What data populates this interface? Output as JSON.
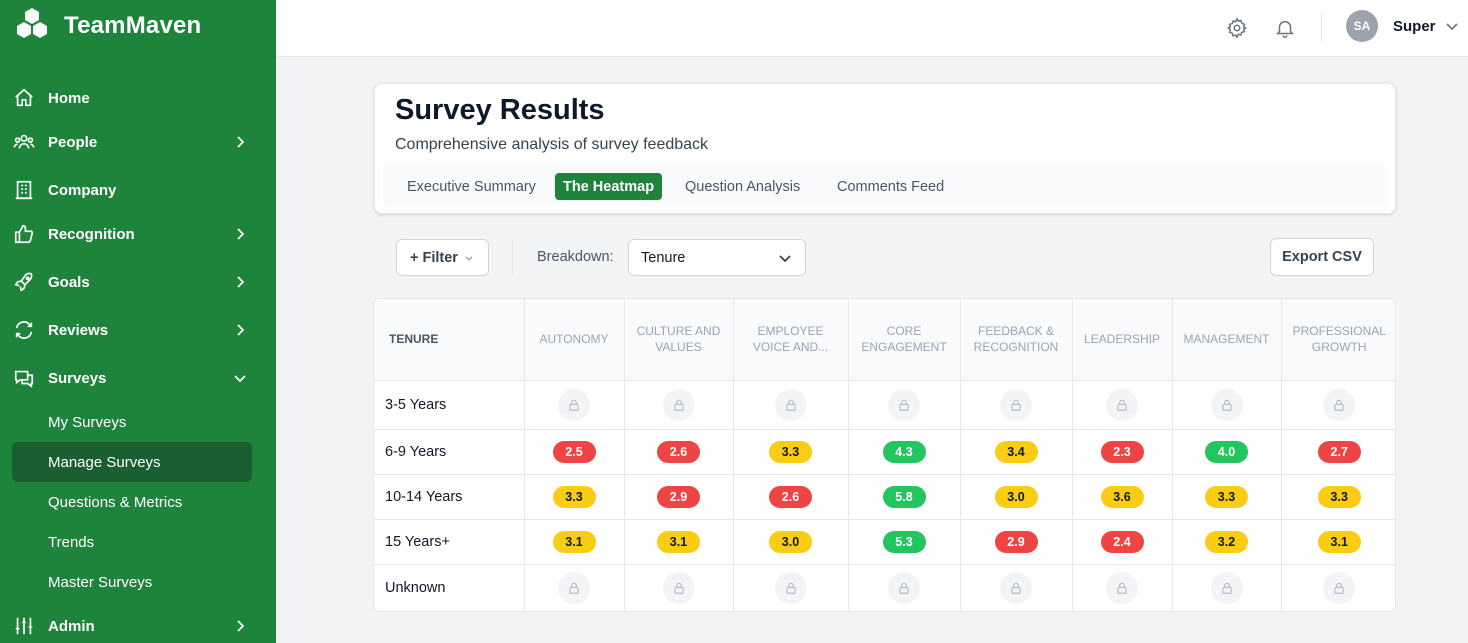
{
  "brand": {
    "name": "TeamMaven"
  },
  "sidebar": {
    "items": [
      {
        "label": "Home",
        "icon": "home-icon"
      },
      {
        "label": "People",
        "icon": "people-icon"
      },
      {
        "label": "Company",
        "icon": "building-icon"
      },
      {
        "label": "Recognition",
        "icon": "thumbs-up-icon"
      },
      {
        "label": "Goals",
        "icon": "rocket-icon"
      },
      {
        "label": "Reviews",
        "icon": "refresh-icon"
      },
      {
        "label": "Surveys",
        "icon": "chat-icon"
      },
      {
        "label": "Admin",
        "icon": "sliders-icon"
      }
    ],
    "survey_subitems": [
      "My Surveys",
      "Manage Surveys",
      "Questions & Metrics",
      "Trends",
      "Master Surveys"
    ],
    "active_subitem": "Manage Surveys"
  },
  "topbar": {
    "user_initials": "SA",
    "user_name": "Super"
  },
  "header": {
    "title": "Survey Results",
    "subtitle": "Comprehensive analysis of survey feedback",
    "tabs": [
      "Executive Summary",
      "The Heatmap",
      "Question Analysis",
      "Comments Feed"
    ],
    "active_tab": "The Heatmap"
  },
  "toolbar": {
    "filter_label": "+ Filter",
    "breakdown_label": "Breakdown:",
    "breakdown_value": "Tenure",
    "export_label": "Export CSV"
  },
  "heatmap": {
    "row_header": "TENURE",
    "columns": [
      "AUTONOMY",
      "CULTURE AND VALUES",
      "EMPLOYEE VOICE AND...",
      "CORE ENGAGEMENT",
      "FEEDBACK & RECOGNITION",
      "LEADERSHIP",
      "MANAGEMENT",
      "PROFESSIONAL GROWTH"
    ],
    "rows": [
      {
        "label": "3-5 Years",
        "values": [
          null,
          null,
          null,
          null,
          null,
          null,
          null,
          null
        ]
      },
      {
        "label": "6-9 Years",
        "values": [
          "2.5",
          "2.6",
          "3.3",
          "4.3",
          "3.4",
          "2.3",
          "4.0",
          "2.7"
        ]
      },
      {
        "label": "10-14 Years",
        "values": [
          "3.3",
          "2.9",
          "2.6",
          "5.8",
          "3.0",
          "3.6",
          "3.3",
          "3.3"
        ]
      },
      {
        "label": "15 Years+",
        "values": [
          "3.1",
          "3.1",
          "3.0",
          "5.3",
          "2.9",
          "2.4",
          "3.2",
          "3.1"
        ]
      },
      {
        "label": "Unknown",
        "values": [
          null,
          null,
          null,
          null,
          null,
          null,
          null,
          null
        ]
      }
    ],
    "colors": {
      "low": "#ef4444",
      "mid": "#facc15",
      "high": "#22c55e"
    }
  }
}
